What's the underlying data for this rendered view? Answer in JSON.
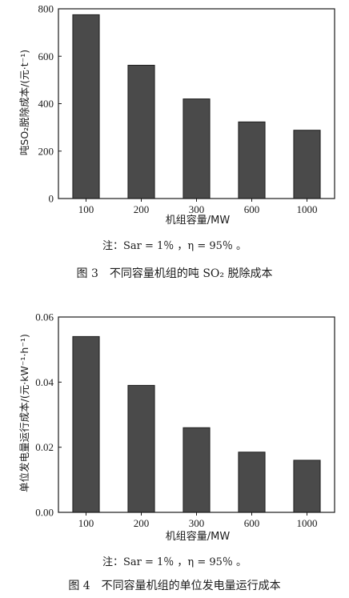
{
  "chart_data": [
    {
      "type": "bar",
      "categories": [
        "100",
        "200",
        "300",
        "600",
        "1000"
      ],
      "values": [
        775,
        562,
        420,
        323,
        288
      ],
      "xlabel": "机组容量/MW",
      "ylabel": "吨SO₂脱除成本/(元·t⁻¹)",
      "ylim": [
        0,
        800
      ],
      "yticks": [
        "0",
        "200",
        "400",
        "600",
        "800"
      ],
      "note": "注：Sar = 1％ ，η = 95％ 。",
      "caption": "图 3　不同容量机组的吨 SO₂ 脱除成本"
    },
    {
      "type": "bar",
      "categories": [
        "100",
        "200",
        "300",
        "600",
        "1000"
      ],
      "values": [
        0.054,
        0.039,
        0.026,
        0.0185,
        0.016
      ],
      "xlabel": "机组容量/MW",
      "ylabel": "单位发电量运行成本/(元·kW⁻¹·h⁻¹)",
      "ylim": [
        0,
        0.06
      ],
      "yticks": [
        "0.00",
        "0.02",
        "0.04",
        "0.06"
      ],
      "note": "注：Sar = 1％ ，η = 95％ 。",
      "caption": "图 4　不同容量机组的单位发电量运行成本"
    }
  ]
}
